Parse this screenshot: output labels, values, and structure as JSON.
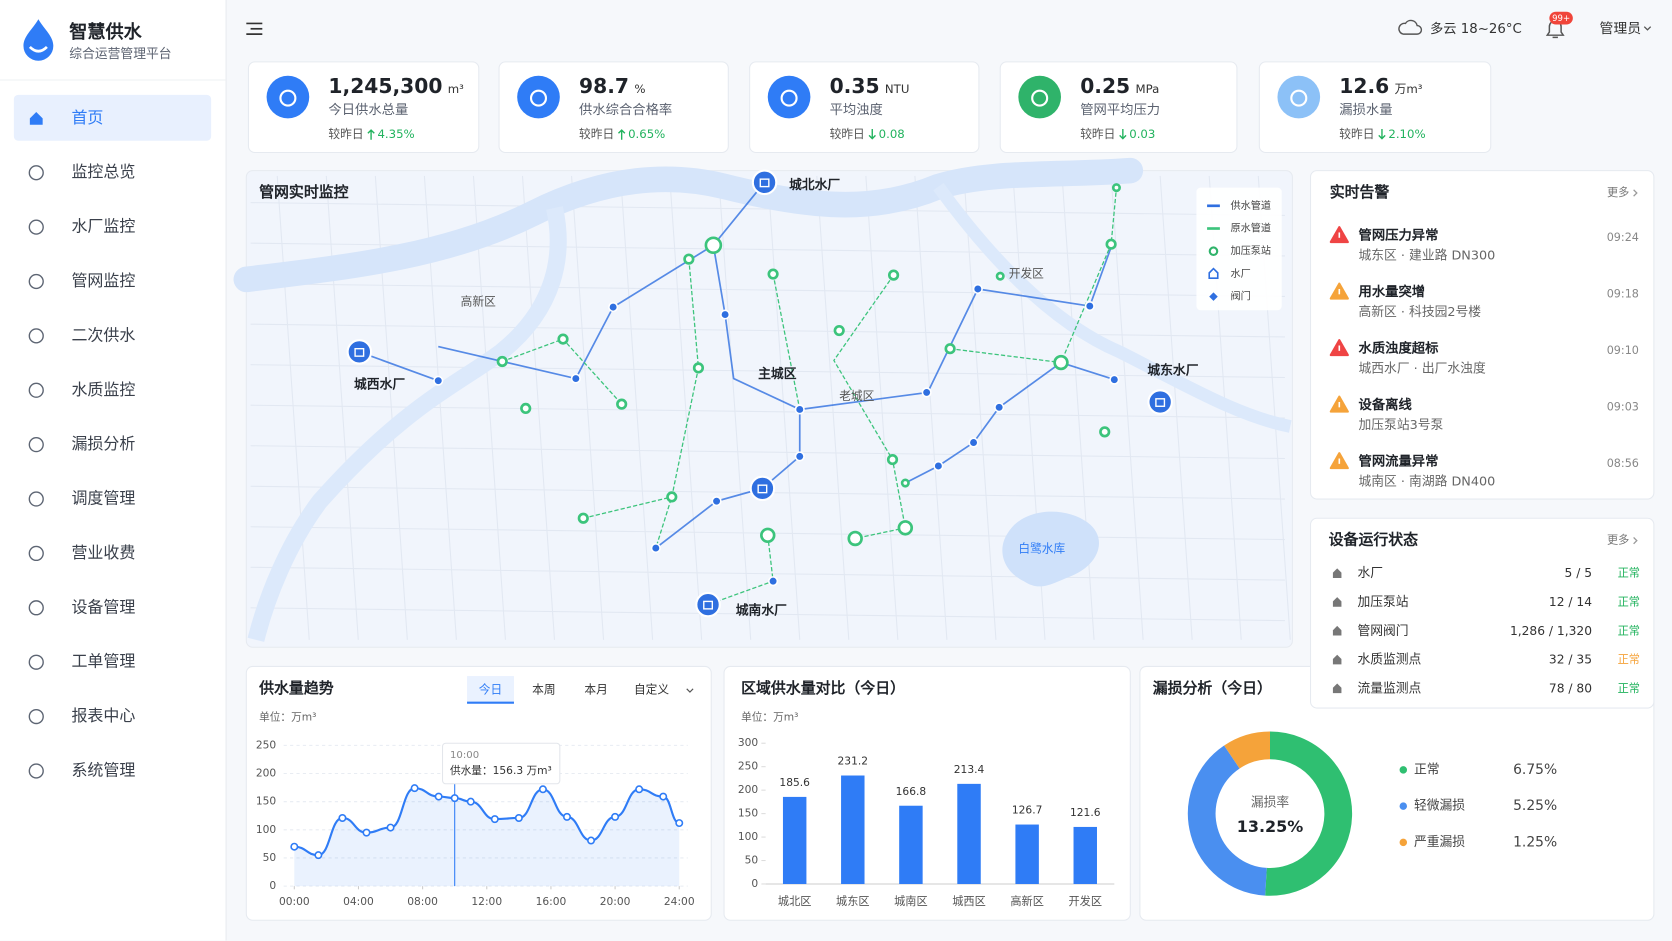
{
  "sidebar": {
    "app_title": "智慧供水",
    "app_subtitle": "综合运营管理平台",
    "active_index": 0,
    "menu": [
      "首页",
      "监控总览",
      "水厂监控",
      "管网监控",
      "二次供水",
      "水质监控",
      "漏损分析",
      "调度管理",
      "营业收费",
      "设备管理",
      "工单管理",
      "报表中心",
      "系统管理"
    ]
  },
  "header": {
    "weather": "多云 18~26°C",
    "notification_badge": "99+",
    "user": "管理员"
  },
  "kpis": [
    {
      "value": "1,245,300",
      "unit": "m³",
      "label": "今日供水总量",
      "compare_label": "较昨日",
      "trend": "up",
      "delta": "4.35%",
      "icon_color": "#2f7cf6"
    },
    {
      "value": "98.7",
      "unit": "%",
      "label": "供水综合合格率",
      "compare_label": "较昨日",
      "trend": "up",
      "delta": "0.65%",
      "icon_color": "#2f7cf6"
    },
    {
      "value": "0.35",
      "unit": "NTU",
      "label": "平均浊度",
      "compare_label": "较昨日",
      "trend": "down",
      "delta": "0.08",
      "icon_color": "#2f7cf6"
    },
    {
      "value": "0.25",
      "unit": "MPa",
      "label": "管网平均压力",
      "compare_label": "较昨日",
      "trend": "down",
      "delta": "0.03",
      "icon_color": "#2fb36a"
    },
    {
      "value": "12.6",
      "unit": "万m³",
      "label": "漏损水量",
      "compare_label": "较昨日",
      "trend": "down",
      "delta": "2.10%",
      "icon_color": "#8cc1f7"
    }
  ],
  "map": {
    "title": "管网实时监控",
    "labels": [
      "城北水厂",
      "高新区",
      "开发区",
      "城西水厂",
      "主城区",
      "老城区",
      "城东水厂",
      "城南水厂",
      "白鹭水库"
    ],
    "legend": [
      {
        "name": "供水管道",
        "symbol": "line",
        "color": "#2f6fe0"
      },
      {
        "name": "原水管道",
        "symbol": "line",
        "color": "#3cc47c"
      },
      {
        "name": "加压泵站",
        "symbol": "ring",
        "color": "#2fb36a"
      },
      {
        "name": "水厂",
        "symbol": "plant",
        "color": "#2f6fe0"
      },
      {
        "name": "阀门",
        "symbol": "valve",
        "color": "#2f6fe0"
      }
    ]
  },
  "alerts": {
    "title": "实时告警",
    "more": "更多",
    "items": [
      {
        "title": "管网压力异常",
        "location": "城东区 · 建业路 DN300",
        "time": "09:24",
        "color": "#ef4444"
      },
      {
        "title": "用水量突增",
        "location": "高新区 · 科技园2号楼",
        "time": "09:18",
        "color": "#f5a33a"
      },
      {
        "title": "水质浊度超标",
        "location": "城西水厂 · 出厂水浊度",
        "time": "09:10",
        "color": "#ef4444"
      },
      {
        "title": "设备离线",
        "location": "加压泵站3号泵",
        "time": "09:03",
        "color": "#f5a33a"
      },
      {
        "title": "管网流量异常",
        "location": "城南区 · 南湖路 DN400",
        "time": "08:56",
        "color": "#f5a33a"
      }
    ]
  },
  "devices": {
    "title": "设备运行状态",
    "more": "更多",
    "rows": [
      {
        "name": "水厂",
        "count": "5 / 5",
        "status": "正常",
        "status_color": "#22b35e"
      },
      {
        "name": "加压泵站",
        "count": "12 / 14",
        "status": "正常",
        "status_color": "#22b35e"
      },
      {
        "name": "管网阀门",
        "count": "1,286 / 1,320",
        "status": "正常",
        "status_color": "#22b35e"
      },
      {
        "name": "水质监测点",
        "count": "32 / 35",
        "status": "正常",
        "status_color": "#f5a33a"
      },
      {
        "name": "流量监测点",
        "count": "78 / 80",
        "status": "正常",
        "status_color": "#22b35e"
      }
    ]
  },
  "chart_data": [
    {
      "type": "line",
      "title": "供水量趋势",
      "tabs": [
        "今日",
        "本周",
        "本月",
        "自定义"
      ],
      "active_tab": 0,
      "unit": "单位：万m³",
      "x": [
        0,
        1.5,
        3,
        4.5,
        6,
        7.5,
        9,
        10,
        11,
        12.5,
        14,
        15.5,
        17,
        18.5,
        20,
        21.5,
        23,
        24
      ],
      "values": [
        70,
        55,
        121,
        95,
        104,
        174,
        159,
        156.3,
        150,
        119,
        121,
        172,
        123,
        81,
        123,
        172,
        159,
        112
      ],
      "color": "#2f7cf6",
      "xlim": [
        0,
        24
      ],
      "xticks": [
        {
          "value": 0,
          "label": "00:00"
        },
        {
          "value": 4,
          "label": "04:00"
        },
        {
          "value": 8,
          "label": "08:00"
        },
        {
          "value": 12,
          "label": "12:00"
        },
        {
          "value": 16,
          "label": "16:00"
        },
        {
          "value": 20,
          "label": "20:00"
        },
        {
          "value": 24,
          "label": "24:00"
        }
      ],
      "ylim": [
        0,
        250
      ],
      "yticks": [
        0,
        50,
        100,
        150,
        200,
        250
      ],
      "grid": true,
      "tooltip": {
        "time": {
          "value": 10,
          "label": "10:00"
        },
        "text": "供水量：156.3 万m³"
      }
    },
    {
      "type": "bar",
      "title": "区域供水量对比（今日）",
      "unit": "单位：万m³",
      "categories": [
        "城北区",
        "城东区",
        "城南区",
        "城西区",
        "高新区",
        "开发区"
      ],
      "values": [
        185.6,
        231.2,
        166.8,
        213.4,
        126.7,
        121.6
      ],
      "color": "#2f7cf6",
      "ylim": [
        0,
        300
      ],
      "yticks": [
        0,
        50,
        100,
        150,
        200,
        250,
        300
      ]
    },
    {
      "type": "pie",
      "title": "漏损分析（今日）",
      "center_label": "漏损率",
      "center_value": {
        "value": 13.25,
        "label": "13.25%"
      },
      "categories": [
        "正常",
        "轻微漏损",
        "严重漏损"
      ],
      "values": [
        6.75,
        5.25,
        1.25
      ],
      "value_labels": [
        "6.75%",
        "5.25%",
        "1.25%"
      ],
      "colors": [
        "#2fbf71",
        "#4a8ff0",
        "#f5a33a"
      ]
    }
  ]
}
